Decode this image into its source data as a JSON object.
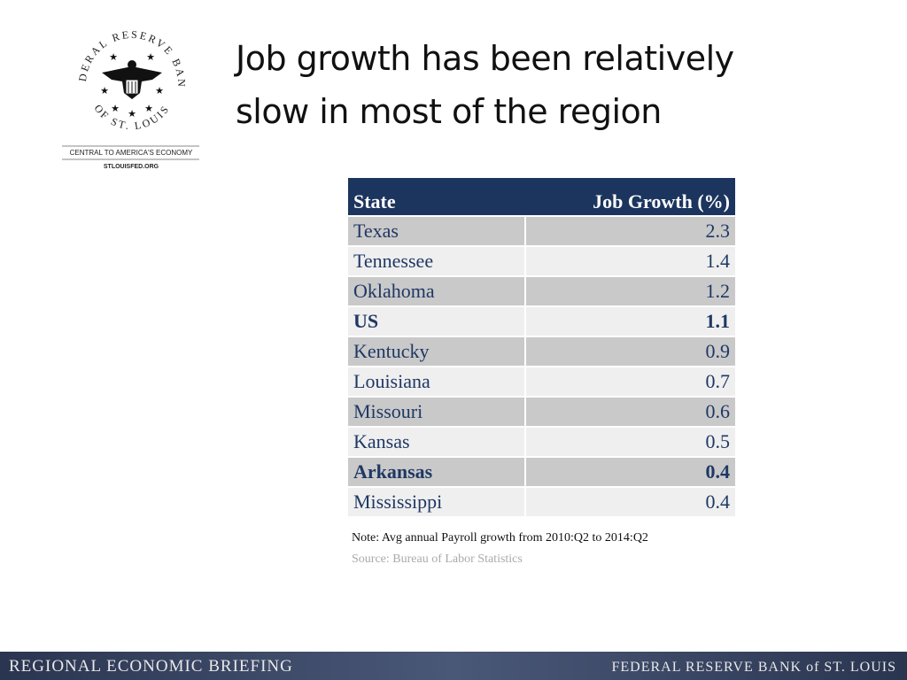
{
  "logo": {
    "arc_top": "FEDERAL RESERVE BANK",
    "arc_bottom": "OF ST. LOUIS",
    "tagline": "CENTRAL TO AMERICA'S ECONOMY",
    "url": "STLOUISFED.ORG"
  },
  "title": [
    "Job growth has been relatively",
    "slow in most of the region"
  ],
  "table": {
    "header": [
      "State",
      "Job Growth (%)"
    ],
    "rows": [
      {
        "state": "Texas",
        "growth": 2.3,
        "bold": false
      },
      {
        "state": "Tennessee",
        "growth": 1.4,
        "bold": false
      },
      {
        "state": "Oklahoma",
        "growth": 1.2,
        "bold": false
      },
      {
        "state": "US",
        "growth": 1.1,
        "bold": true
      },
      {
        "state": "Kentucky",
        "growth": 0.9,
        "bold": false
      },
      {
        "state": "Louisiana",
        "growth": 0.7,
        "bold": false
      },
      {
        "state": "Missouri",
        "growth": 0.6,
        "bold": false
      },
      {
        "state": "Kansas",
        "growth": 0.5,
        "bold": false
      },
      {
        "state": "Arkansas",
        "growth": 0.4,
        "bold": true
      },
      {
        "state": "Mississippi",
        "growth": 0.4,
        "bold": false
      }
    ]
  },
  "note": "Note: Avg annual Payroll growth from 2010:Q2 to 2014:Q2",
  "source": "Source: Bureau of Labor Statistics",
  "footer": {
    "left": "REGIONAL ECONOMIC BRIEFING",
    "right": "FEDERAL RESERVE BANK of ST. LOUIS"
  }
}
